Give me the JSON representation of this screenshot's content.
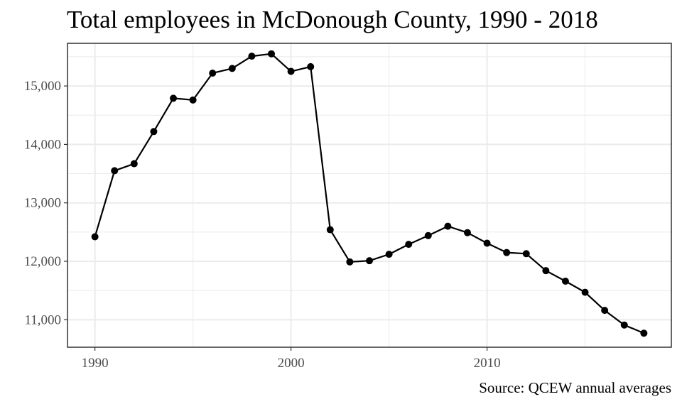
{
  "chart_data": {
    "type": "line",
    "title": "Total employees in McDonough County, 1990 - 2018",
    "caption": "Source: QCEW annual averages",
    "xlabel": "",
    "ylabel": "",
    "xlim": [
      1988.6,
      2019.4
    ],
    "ylim": [
      10530,
      15730
    ],
    "x_ticks": [
      1990,
      2000,
      2010
    ],
    "x_tick_labels": [
      "1990",
      "2000",
      "2010"
    ],
    "y_ticks": [
      11000,
      12000,
      13000,
      14000,
      15000
    ],
    "y_tick_labels": [
      "11,000",
      "12,000",
      "13,000",
      "14,000",
      "15,000"
    ],
    "grid": true,
    "series": [
      {
        "x": [
          1990,
          1991,
          1992,
          1993,
          1994,
          1995,
          1996,
          1997,
          1998,
          1999,
          2000,
          2001,
          2002,
          2003,
          2004,
          2005,
          2006,
          2007,
          2008,
          2009,
          2010,
          2011,
          2012,
          2013,
          2014,
          2015,
          2016,
          2017,
          2018
        ],
        "values": [
          12420,
          13550,
          13670,
          14220,
          14790,
          14760,
          15220,
          15300,
          15510,
          15550,
          15250,
          15330,
          12540,
          11990,
          12010,
          12120,
          12290,
          12440,
          12600,
          12490,
          12310,
          12150,
          12130,
          11840,
          11660,
          11470,
          11160,
          10910,
          10770
        ]
      }
    ],
    "colors": {
      "line": "#000000",
      "point": "#000000",
      "grid": "#ebebeb",
      "panel_border": "#333333",
      "tick_text": "#4d4d4d"
    }
  }
}
